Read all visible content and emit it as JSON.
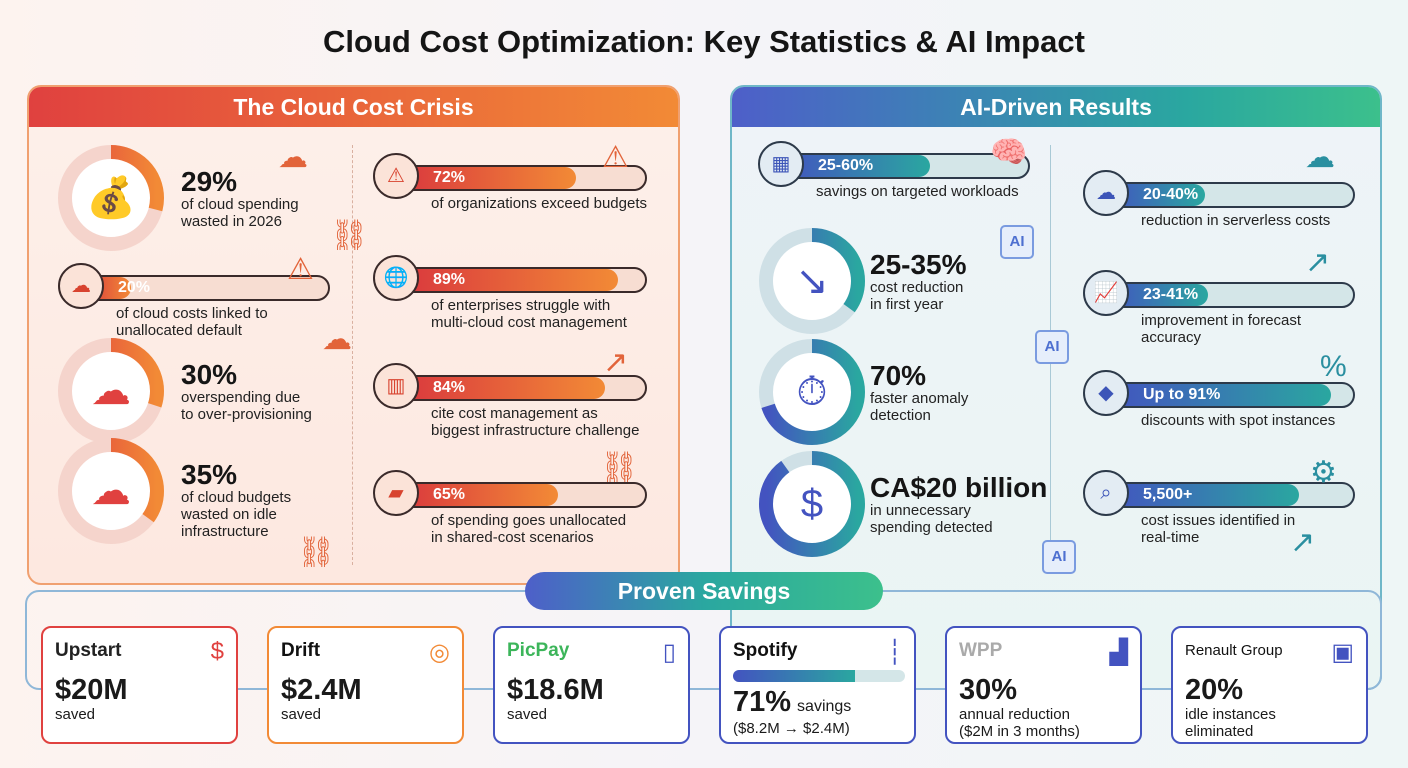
{
  "title": "Cloud Cost Optimization: Key Statistics & AI Impact",
  "colors": {
    "crisis_red": "#d9363e",
    "crisis_orange": "#f28a36",
    "ai_blue": "#4353c0",
    "ai_teal": "#2aa7a0"
  },
  "crisis": {
    "header": "The Cloud Cost Crisis",
    "donuts": [
      {
        "value": "29%",
        "fraction": 0.29,
        "desc": [
          "of cloud spending",
          "wasted in 2026"
        ],
        "icon": "money-bag-icon"
      },
      {
        "value": "30%",
        "fraction": 0.3,
        "desc": [
          "overspending due",
          "to over-provisioning"
        ],
        "icon": "server-cloud-icon"
      },
      {
        "value": "35%",
        "fraction": 0.35,
        "desc": [
          "of cloud budgets",
          "wasted on idle",
          "infrastructure"
        ],
        "icon": "cloud-network-icon"
      }
    ],
    "left_bar": {
      "value": "20%",
      "fraction": 0.2,
      "desc": [
        "of cloud costs linked to",
        "unallocated default"
      ],
      "icon": "cloud-box-icon"
    },
    "bars": [
      {
        "value": "72%",
        "fraction": 0.72,
        "desc": [
          "of organizations exceed budgets"
        ],
        "icon": "warning-icon"
      },
      {
        "value": "89%",
        "fraction": 0.89,
        "desc": [
          "of enterprises struggle with",
          "multi-cloud cost management"
        ],
        "icon": "globe-icon"
      },
      {
        "value": "84%",
        "fraction": 0.84,
        "desc": [
          "cite cost management as",
          "biggest infrastructure challenge"
        ],
        "icon": "bar-chart-icon"
      },
      {
        "value": "65%",
        "fraction": 0.65,
        "desc": [
          "of spending goes unallocated",
          "in shared-cost scenarios"
        ],
        "icon": "folder-share-icon"
      }
    ]
  },
  "ai": {
    "header": "AI-Driven Results",
    "top_bar": {
      "value": "25-60%",
      "fraction": 0.6,
      "desc": [
        "savings on targeted workloads"
      ],
      "icon": "chip-icon"
    },
    "donuts": [
      {
        "value": "25-35%",
        "fraction": 0.35,
        "desc": [
          "cost reduction",
          "in first year"
        ],
        "icon": "trend-down-icon"
      },
      {
        "value": "70%",
        "fraction": 0.7,
        "desc": [
          "faster anomaly",
          "detection"
        ],
        "icon": "stopwatch-icon"
      },
      {
        "value": "CA$20 billion",
        "fraction": 0.9,
        "desc": [
          "in unnecessary",
          "spending detected"
        ],
        "icon": "dollar-chip-icon"
      }
    ],
    "bars": [
      {
        "value": "20-40%",
        "fraction": 0.4,
        "desc": [
          "reduction in serverless costs"
        ],
        "icon": "cloud-bolt-icon"
      },
      {
        "value": "23-41%",
        "fraction": 0.41,
        "desc": [
          "improvement in forecast",
          "accuracy"
        ],
        "icon": "line-chart-icon"
      },
      {
        "value": "Up to 91%",
        "fraction": 0.91,
        "desc": [
          "discounts with spot instances"
        ],
        "icon": "price-tag-icon"
      },
      {
        "value": "5,500+",
        "fraction": 0.78,
        "desc": [
          "cost issues identified in",
          "real-time"
        ],
        "icon": "magnifier-icon"
      }
    ],
    "chip_label": "AI"
  },
  "proven": {
    "header": "Proven Savings",
    "cards": [
      {
        "brand": "Upstart",
        "value": "$20M",
        "sub": [
          "saved"
        ],
        "color": "#e0413f",
        "brand_color": "#222",
        "icon": "dollar-coin-icon",
        "glyph": "$"
      },
      {
        "brand": "Drift",
        "value": "$2.4M",
        "sub": [
          "saved"
        ],
        "color": "#f28a36",
        "brand_color": "#111",
        "icon": "coin-stack-icon",
        "glyph": "◎"
      },
      {
        "brand": "PicPay",
        "value": "$18.6M",
        "sub": [
          "saved"
        ],
        "color": "#4353c0",
        "brand_color": "#3cb55a",
        "icon": "phone-money-icon",
        "glyph": "▯"
      },
      {
        "brand": "Spotify",
        "value": "71%",
        "value_suffix": "savings",
        "sub": [
          "($8.2M → $2.4M)"
        ],
        "color": "#4353c0",
        "brand_color": "#111",
        "icon": "soundwave-icon",
        "glyph": "┆",
        "progress": 0.71
      },
      {
        "brand": "WPP",
        "value": "30%",
        "sub": [
          "annual reduction",
          "($2M in 3 months)"
        ],
        "color": "#4353c0",
        "brand_color": "#aaa",
        "icon": "growth-chart-icon",
        "glyph": "▟"
      },
      {
        "brand": "Renault Group",
        "value": "20%",
        "sub": [
          "idle instances",
          "eliminated"
        ],
        "color": "#4353c0",
        "brand_color": "#111",
        "icon": "car-icon",
        "glyph": "▣"
      }
    ]
  }
}
